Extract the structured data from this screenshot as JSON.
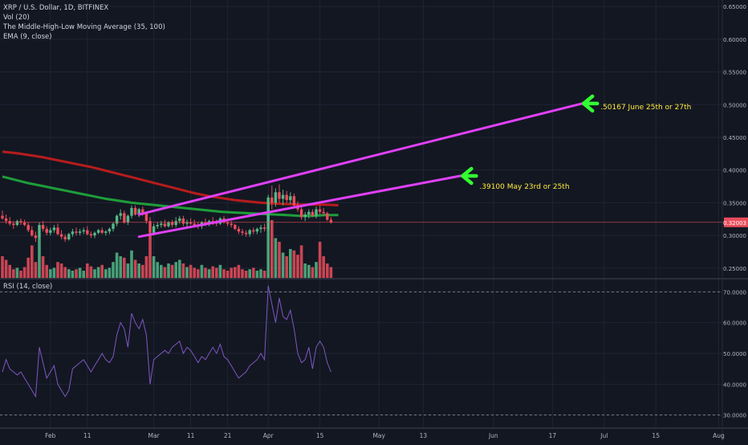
{
  "legend": {
    "symbol": "XRP / U.S. Dollar, 1D, BITFINEX",
    "vol": "Vol (20)",
    "mhl": "The Middle-High-Low Moving Average (35, 100)",
    "ema": "EMA (9, close)",
    "rsi": "RSI (14, close)"
  },
  "annotations": {
    "upper_target": ".50167 June 25th or 27th",
    "lower_target": ".39100 May 23rd or 25th"
  },
  "price_badge": "0.32003",
  "colors": {
    "background": "#131722",
    "up": "#53b987",
    "down": "#eb4d5c",
    "trendline": "#e040fb",
    "arrow": "#33ff33",
    "annotation_text": "#ffeb3b",
    "ma_fast": "#1e9e3a",
    "ma_slow": "#b71c1c",
    "rsi_line": "#7e57c2"
  },
  "chart_data": [
    {
      "type": "candlestick",
      "title": "XRP / U.S. Dollar, 1D, BITFINEX",
      "x_tick_labels": [
        "Feb",
        "11",
        "Mar",
        "11",
        "21",
        "Apr",
        "15",
        "May",
        "13",
        "Jun",
        "17",
        "Jul",
        "15",
        "Aug"
      ],
      "x_tick_dates": [
        "2019-02-01",
        "2019-02-11",
        "2019-03-01",
        "2019-03-11",
        "2019-03-21",
        "2019-04-01",
        "2019-04-15",
        "2019-05-01",
        "2019-05-13",
        "2019-06-01",
        "2019-06-17",
        "2019-07-01",
        "2019-07-15",
        "2019-08-01"
      ],
      "y_tick_labels": [
        "0.65000",
        "0.60000",
        "0.55000",
        "0.50000",
        "0.45000",
        "0.40000",
        "0.35000",
        "0.30000",
        "0.25000"
      ],
      "ylim": [
        0.235,
        0.66
      ],
      "last_price": 0.32003,
      "ohlc_start": "2019-01-19",
      "ohlc": [
        [
          0.33,
          0.338,
          0.324,
          0.326
        ],
        [
          0.326,
          0.332,
          0.318,
          0.322
        ],
        [
          0.322,
          0.328,
          0.315,
          0.318
        ],
        [
          0.318,
          0.322,
          0.31,
          0.316
        ],
        [
          0.316,
          0.324,
          0.314,
          0.322
        ],
        [
          0.322,
          0.326,
          0.316,
          0.32
        ],
        [
          0.32,
          0.324,
          0.314,
          0.316
        ],
        [
          0.316,
          0.32,
          0.305,
          0.308
        ],
        [
          0.308,
          0.314,
          0.298,
          0.3
        ],
        [
          0.3,
          0.306,
          0.29,
          0.296
        ],
        [
          0.296,
          0.32,
          0.294,
          0.316
        ],
        [
          0.316,
          0.322,
          0.306,
          0.31
        ],
        [
          0.31,
          0.314,
          0.3,
          0.304
        ],
        [
          0.304,
          0.312,
          0.3,
          0.308
        ],
        [
          0.308,
          0.316,
          0.304,
          0.312
        ],
        [
          0.312,
          0.318,
          0.3,
          0.302
        ],
        [
          0.302,
          0.308,
          0.294,
          0.298
        ],
        [
          0.298,
          0.302,
          0.29,
          0.294
        ],
        [
          0.294,
          0.304,
          0.292,
          0.302
        ],
        [
          0.302,
          0.31,
          0.298,
          0.306
        ],
        [
          0.306,
          0.312,
          0.3,
          0.304
        ],
        [
          0.304,
          0.31,
          0.3,
          0.306
        ],
        [
          0.306,
          0.312,
          0.302,
          0.308
        ],
        [
          0.308,
          0.314,
          0.3,
          0.302
        ],
        [
          0.302,
          0.306,
          0.296,
          0.3
        ],
        [
          0.3,
          0.306,
          0.296,
          0.304
        ],
        [
          0.304,
          0.31,
          0.302,
          0.308
        ],
        [
          0.308,
          0.312,
          0.302,
          0.304
        ],
        [
          0.304,
          0.308,
          0.3,
          0.306
        ],
        [
          0.306,
          0.312,
          0.302,
          0.31
        ],
        [
          0.31,
          0.32,
          0.306,
          0.318
        ],
        [
          0.318,
          0.332,
          0.314,
          0.33
        ],
        [
          0.33,
          0.34,
          0.324,
          0.334
        ],
        [
          0.334,
          0.338,
          0.318,
          0.32
        ],
        [
          0.32,
          0.332,
          0.316,
          0.33
        ],
        [
          0.33,
          0.346,
          0.326,
          0.342
        ],
        [
          0.342,
          0.346,
          0.33,
          0.332
        ],
        [
          0.332,
          0.342,
          0.328,
          0.34
        ],
        [
          0.34,
          0.344,
          0.33,
          0.334
        ],
        [
          0.334,
          0.336,
          0.318,
          0.322
        ],
        [
          0.322,
          0.328,
          0.298,
          0.304
        ],
        [
          0.304,
          0.318,
          0.3,
          0.314
        ],
        [
          0.314,
          0.32,
          0.31,
          0.316
        ],
        [
          0.316,
          0.322,
          0.312,
          0.318
        ],
        [
          0.318,
          0.324,
          0.312,
          0.314
        ],
        [
          0.314,
          0.322,
          0.312,
          0.32
        ],
        [
          0.32,
          0.324,
          0.312,
          0.316
        ],
        [
          0.316,
          0.328,
          0.312,
          0.322
        ],
        [
          0.322,
          0.33,
          0.318,
          0.326
        ],
        [
          0.326,
          0.33,
          0.314,
          0.318
        ],
        [
          0.318,
          0.324,
          0.312,
          0.32
        ],
        [
          0.32,
          0.326,
          0.316,
          0.318
        ],
        [
          0.318,
          0.324,
          0.312,
          0.316
        ],
        [
          0.316,
          0.32,
          0.31,
          0.314
        ],
        [
          0.314,
          0.322,
          0.31,
          0.32
        ],
        [
          0.32,
          0.326,
          0.314,
          0.318
        ],
        [
          0.318,
          0.324,
          0.314,
          0.322
        ],
        [
          0.322,
          0.328,
          0.316,
          0.32
        ],
        [
          0.32,
          0.324,
          0.314,
          0.318
        ],
        [
          0.318,
          0.328,
          0.316,
          0.326
        ],
        [
          0.326,
          0.33,
          0.318,
          0.32
        ],
        [
          0.32,
          0.324,
          0.314,
          0.318
        ],
        [
          0.318,
          0.322,
          0.312,
          0.316
        ],
        [
          0.316,
          0.318,
          0.308,
          0.31
        ],
        [
          0.31,
          0.314,
          0.302,
          0.306
        ],
        [
          0.306,
          0.31,
          0.3,
          0.304
        ],
        [
          0.304,
          0.308,
          0.298,
          0.302
        ],
        [
          0.302,
          0.31,
          0.298,
          0.308
        ],
        [
          0.308,
          0.312,
          0.302,
          0.306
        ],
        [
          0.306,
          0.312,
          0.302,
          0.31
        ],
        [
          0.31,
          0.316,
          0.304,
          0.312
        ],
        [
          0.312,
          0.318,
          0.306,
          0.31
        ],
        [
          0.31,
          0.362,
          0.306,
          0.358
        ],
        [
          0.358,
          0.376,
          0.34,
          0.35
        ],
        [
          0.35,
          0.372,
          0.344,
          0.366
        ],
        [
          0.366,
          0.378,
          0.35,
          0.356
        ],
        [
          0.356,
          0.37,
          0.346,
          0.362
        ],
        [
          0.362,
          0.368,
          0.35,
          0.354
        ],
        [
          0.354,
          0.366,
          0.348,
          0.36
        ],
        [
          0.36,
          0.364,
          0.342,
          0.346
        ],
        [
          0.346,
          0.352,
          0.336,
          0.34
        ],
        [
          0.34,
          0.346,
          0.324,
          0.328
        ],
        [
          0.328,
          0.336,
          0.322,
          0.332
        ],
        [
          0.332,
          0.34,
          0.326,
          0.336
        ],
        [
          0.336,
          0.34,
          0.328,
          0.33
        ],
        [
          0.33,
          0.344,
          0.326,
          0.34
        ],
        [
          0.34,
          0.346,
          0.332,
          0.336
        ],
        [
          0.336,
          0.342,
          0.33,
          0.334
        ],
        [
          0.334,
          0.336,
          0.322,
          0.324
        ],
        [
          0.324,
          0.328,
          0.318,
          0.32
        ]
      ],
      "volume": [
        0.3,
        0.25,
        0.18,
        0.12,
        0.14,
        0.1,
        0.15,
        0.28,
        0.45,
        0.22,
        0.55,
        0.3,
        0.18,
        0.12,
        0.14,
        0.22,
        0.2,
        0.15,
        0.12,
        0.1,
        0.12,
        0.14,
        0.1,
        0.2,
        0.16,
        0.12,
        0.15,
        0.18,
        0.12,
        0.14,
        0.22,
        0.35,
        0.3,
        0.28,
        0.2,
        0.38,
        0.25,
        0.2,
        0.18,
        0.3,
        0.62,
        0.3,
        0.22,
        0.18,
        0.15,
        0.2,
        0.18,
        0.22,
        0.25,
        0.2,
        0.15,
        0.18,
        0.14,
        0.12,
        0.18,
        0.14,
        0.12,
        0.16,
        0.14,
        0.18,
        0.12,
        0.1,
        0.14,
        0.15,
        0.18,
        0.12,
        0.1,
        0.12,
        0.14,
        0.1,
        0.12,
        0.1,
        0.95,
        0.8,
        0.55,
        0.5,
        0.35,
        0.3,
        0.4,
        0.38,
        0.32,
        0.45,
        0.2,
        0.18,
        0.15,
        0.22,
        0.5,
        0.3,
        0.2,
        0.15
      ],
      "series": [
        {
          "start": "2019-01-19",
          "end": "2019-04-20",
          "values": [
            0.39,
            0.385,
            0.38,
            0.376,
            0.372,
            0.368,
            0.364,
            0.36,
            0.356,
            0.353,
            0.35,
            0.348,
            0.346,
            0.344,
            0.342,
            0.34,
            0.338,
            0.336,
            0.335,
            0.334,
            0.333,
            0.332,
            0.331,
            0.33,
            0.33,
            0.331,
            0.331
          ]
        },
        {
          "start": "2019-01-19",
          "end": "2019-04-20",
          "values": [
            0.428,
            0.426,
            0.423,
            0.42,
            0.416,
            0.412,
            0.408,
            0.404,
            0.399,
            0.394,
            0.389,
            0.384,
            0.379,
            0.374,
            0.369,
            0.364,
            0.36,
            0.357,
            0.354,
            0.352,
            0.35,
            0.349,
            0.348,
            0.347,
            0.347,
            0.347,
            0.346
          ]
        }
      ],
      "trendlines": [
        {
          "from": [
            "2019-02-25",
            0.332
          ],
          "to": [
            "2019-06-25",
            0.50167
          ]
        },
        {
          "from": [
            "2019-02-25",
            0.298
          ],
          "to": [
            "2019-05-23",
            0.391
          ]
        }
      ]
    },
    {
      "type": "line",
      "title": "RSI (14, close)",
      "y_tick_labels": [
        "70.0000",
        "60.0000",
        "50.0000",
        "40.0000",
        "30.0000"
      ],
      "ylim": [
        26,
        74
      ],
      "levels": [
        70,
        30
      ],
      "start": "2019-01-19",
      "values": [
        44,
        48,
        45,
        44,
        43,
        44,
        42,
        40,
        38,
        36,
        52,
        47,
        42,
        44,
        46,
        40,
        38,
        36,
        38,
        45,
        46,
        47,
        48,
        46,
        44,
        46,
        48,
        50,
        48,
        47,
        49,
        56,
        60,
        58,
        52,
        63,
        60,
        58,
        61,
        56,
        40,
        48,
        49,
        50,
        51,
        50,
        52,
        53,
        54,
        50,
        52,
        51,
        49,
        47,
        49,
        48,
        50,
        52,
        50,
        53,
        49,
        48,
        46,
        44,
        42,
        43,
        44,
        46,
        47,
        48,
        50,
        48,
        72,
        66,
        60,
        68,
        62,
        61,
        64,
        58,
        50,
        47,
        48,
        52,
        45,
        52,
        54,
        52,
        47,
        44
      ]
    }
  ]
}
